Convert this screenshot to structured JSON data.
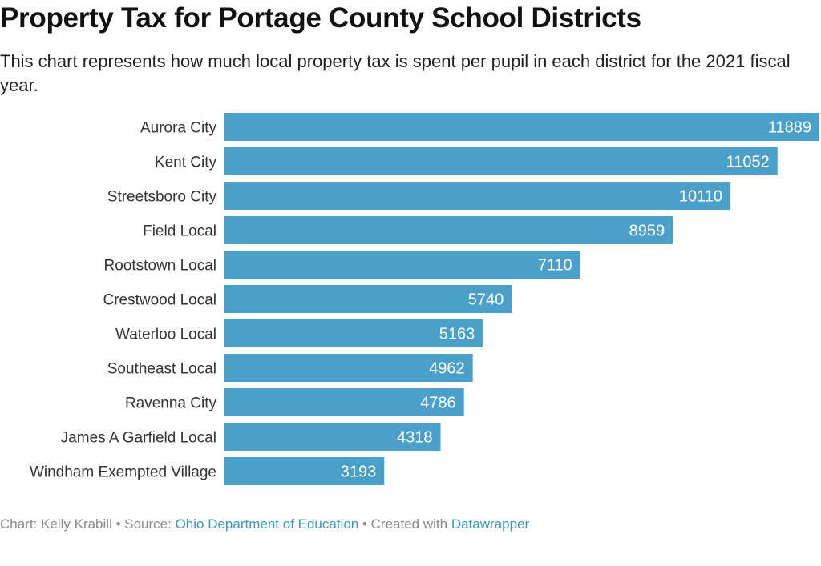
{
  "header": {
    "title": "Property Tax for Portage County School Districts",
    "subtitle": "This chart represents how much local property tax is spent per pupil in each district for the 2021 fiscal year."
  },
  "colors": {
    "bar": "#4aa0c9",
    "bar_label": "#ffffff",
    "category_label": "#333333"
  },
  "chart_data": {
    "type": "bar",
    "orientation": "horizontal",
    "title": "Property Tax for Portage County School Districts",
    "subtitle": "This chart represents how much local property tax is spent per pupil in each district for the 2021 fiscal year.",
    "categories": [
      "Aurora City",
      "Kent City",
      "Streetsboro City",
      "Field Local",
      "Rootstown Local",
      "Crestwood Local",
      "Waterloo Local",
      "Southeast Local",
      "Ravenna City",
      "James A Garfield Local",
      "Windham Exempted Village"
    ],
    "values": [
      11889,
      11052,
      10110,
      8959,
      7110,
      5740,
      5163,
      4962,
      4786,
      4318,
      3193
    ],
    "xlim": [
      0,
      11889
    ],
    "grid": false,
    "data_labels": true
  },
  "footer": {
    "chart_prefix": "Chart: ",
    "author": "Kelly Krabill",
    "sep1": " • ",
    "source_prefix": "Source: ",
    "source": "Ohio Department of Education",
    "sep2": " • ",
    "created_prefix": "Created with ",
    "tool": "Datawrapper"
  }
}
